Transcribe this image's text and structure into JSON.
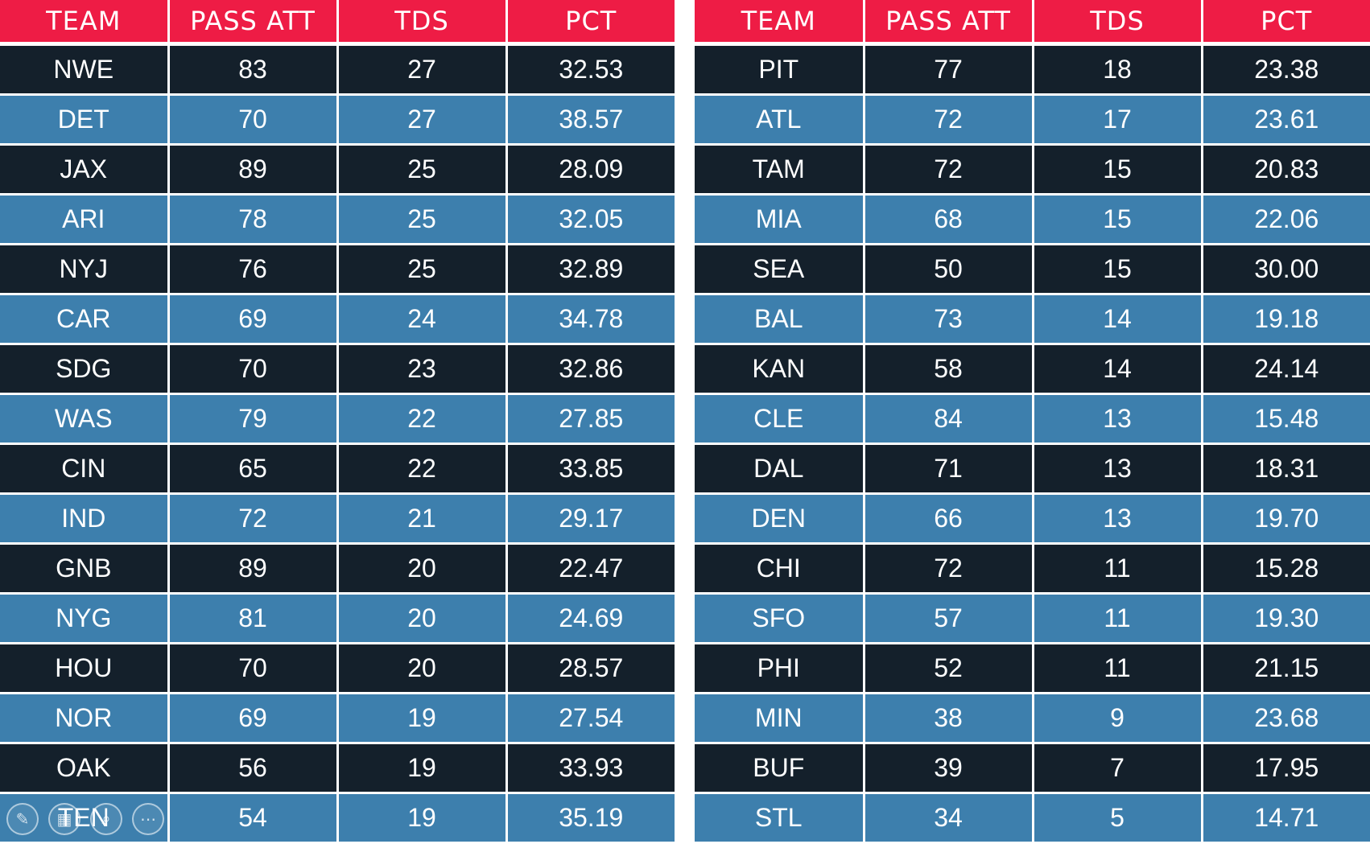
{
  "columns": [
    "TEAM",
    "PASS ATT",
    "TDS",
    "PCT"
  ],
  "left_rows": [
    [
      "NWE",
      "83",
      "27",
      "32.53"
    ],
    [
      "DET",
      "70",
      "27",
      "38.57"
    ],
    [
      "JAX",
      "89",
      "25",
      "28.09"
    ],
    [
      "ARI",
      "78",
      "25",
      "32.05"
    ],
    [
      "NYJ",
      "76",
      "25",
      "32.89"
    ],
    [
      "CAR",
      "69",
      "24",
      "34.78"
    ],
    [
      "SDG",
      "70",
      "23",
      "32.86"
    ],
    [
      "WAS",
      "79",
      "22",
      "27.85"
    ],
    [
      "CIN",
      "65",
      "22",
      "33.85"
    ],
    [
      "IND",
      "72",
      "21",
      "29.17"
    ],
    [
      "GNB",
      "89",
      "20",
      "22.47"
    ],
    [
      "NYG",
      "81",
      "20",
      "24.69"
    ],
    [
      "HOU",
      "70",
      "20",
      "28.57"
    ],
    [
      "NOR",
      "69",
      "19",
      "27.54"
    ],
    [
      "OAK",
      "56",
      "19",
      "33.93"
    ],
    [
      "TEN",
      "54",
      "19",
      "35.19"
    ]
  ],
  "right_rows": [
    [
      "PIT",
      "77",
      "18",
      "23.38"
    ],
    [
      "ATL",
      "72",
      "17",
      "23.61"
    ],
    [
      "TAM",
      "72",
      "15",
      "20.83"
    ],
    [
      "MIA",
      "68",
      "15",
      "22.06"
    ],
    [
      "SEA",
      "50",
      "15",
      "30.00"
    ],
    [
      "BAL",
      "73",
      "14",
      "19.18"
    ],
    [
      "KAN",
      "58",
      "14",
      "24.14"
    ],
    [
      "CLE",
      "84",
      "13",
      "15.48"
    ],
    [
      "DAL",
      "71",
      "13",
      "18.31"
    ],
    [
      "DEN",
      "66",
      "13",
      "19.70"
    ],
    [
      "CHI",
      "72",
      "11",
      "15.28"
    ],
    [
      "SFO",
      "57",
      "11",
      "19.30"
    ],
    [
      "PHI",
      "52",
      "11",
      "21.15"
    ],
    [
      "MIN",
      "38",
      "9",
      "23.68"
    ],
    [
      "BUF",
      "39",
      "7",
      "17.95"
    ],
    [
      "STL",
      "34",
      "5",
      "14.71"
    ]
  ],
  "toolbar": {
    "pen_icon": "✎",
    "slides_icon": "▦",
    "zoom_icon": "⌕",
    "more_icon": "⋯"
  },
  "colors": {
    "header": "#ee1c45",
    "row_dark": "#14202b",
    "row_light": "#3d7fad",
    "text": "#ffffff"
  }
}
